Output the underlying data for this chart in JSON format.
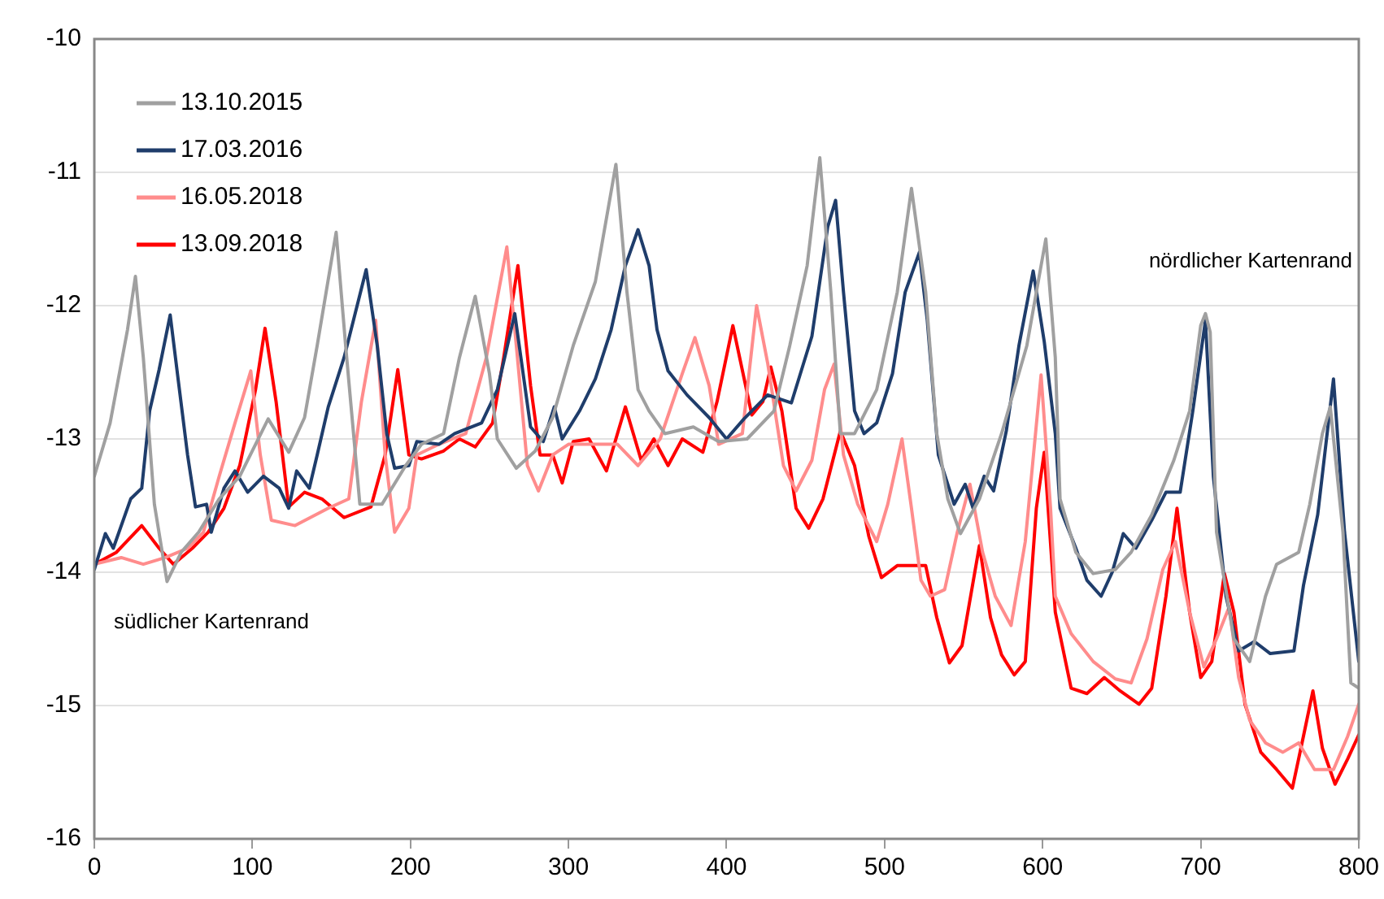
{
  "chart_data": {
    "type": "line",
    "xlim": [
      0,
      800
    ],
    "xticks": [
      0,
      100,
      200,
      300,
      400,
      500,
      600,
      700,
      800
    ],
    "ylim": [
      -16,
      -10
    ],
    "yticks": [
      -16,
      -15,
      -14,
      -13,
      -12,
      -11,
      -10
    ],
    "grid": "y",
    "legend": "top left",
    "marker": "none",
    "line_style": "solid",
    "annotations": [
      "nördlicher Kartenrand",
      "südlicher Kartenrand"
    ],
    "series": [
      {
        "name": "13.10.2015",
        "color": "#a0a0a0",
        "x": [
          0,
          10,
          21,
          26,
          31,
          38,
          46,
          55,
          66,
          79,
          92,
          110,
          123,
          133,
          141,
          153,
          159,
          168,
          182,
          197,
          207,
          221,
          231,
          241,
          250,
          255,
          267,
          279,
          290,
          303,
          317,
          330,
          337,
          344,
          351,
          361,
          379,
          395,
          413,
          430,
          440,
          451,
          459,
          466,
          472,
          481,
          495,
          508,
          517,
          526,
          533,
          540,
          548,
          560,
          574,
          590,
          602,
          608,
          611,
          621,
          632,
          646,
          656,
          669,
          683,
          693,
          700,
          703,
          706,
          710,
          721,
          731,
          741,
          748,
          762,
          769,
          777,
          782,
          790,
          795,
          800
        ],
        "values": [
          -13.28,
          -12.88,
          -12.18,
          -11.78,
          -12.39,
          -13.49,
          -14.07,
          -13.85,
          -13.7,
          -13.45,
          -13.28,
          -12.85,
          -13.1,
          -12.84,
          -12.3,
          -11.45,
          -12.3,
          -13.49,
          -13.49,
          -13.2,
          -13.04,
          -12.96,
          -12.39,
          -11.93,
          -12.51,
          -13.0,
          -13.22,
          -13.09,
          -12.84,
          -12.3,
          -11.82,
          -10.94,
          -11.9,
          -12.63,
          -12.79,
          -12.96,
          -12.91,
          -13.02,
          -13.0,
          -12.79,
          -12.3,
          -11.7,
          -10.89,
          -11.9,
          -12.96,
          -12.96,
          -12.63,
          -11.9,
          -11.12,
          -11.9,
          -12.96,
          -13.45,
          -13.71,
          -13.45,
          -12.96,
          -12.3,
          -11.5,
          -12.39,
          -13.45,
          -13.85,
          -14.01,
          -13.98,
          -13.85,
          -13.57,
          -13.16,
          -12.79,
          -12.15,
          -12.06,
          -12.2,
          -13.7,
          -14.5,
          -14.67,
          -14.18,
          -13.94,
          -13.85,
          -13.49,
          -12.96,
          -12.76,
          -13.7,
          -14.83,
          -14.87
        ]
      },
      {
        "name": "17.03.2016",
        "color": "#1f3d6b",
        "x": [
          0,
          7,
          12,
          23,
          30,
          35,
          41,
          48,
          53,
          59,
          64,
          71,
          74,
          82,
          89,
          97,
          107,
          117,
          123,
          128,
          136,
          141,
          148,
          158,
          172,
          179,
          185,
          190,
          199,
          204,
          218,
          228,
          245,
          255,
          266,
          276,
          284,
          291,
          296,
          307,
          317,
          327,
          336,
          344,
          351,
          356,
          363,
          375,
          389,
          400,
          411,
          416,
          426,
          441,
          454,
          464,
          469,
          474,
          481,
          487,
          495,
          505,
          513,
          522,
          527,
          534,
          544,
          551,
          556,
          563,
          569,
          577,
          585,
          594,
          601,
          608,
          611,
          621,
          628,
          637,
          644,
          651,
          659,
          669,
          678,
          687,
          695,
          703,
          708,
          716,
          724,
          734,
          744,
          759,
          765,
          774,
          784,
          791,
          800
        ],
        "values": [
          -13.98,
          -13.71,
          -13.82,
          -13.45,
          -13.37,
          -12.79,
          -12.48,
          -12.07,
          -12.55,
          -13.12,
          -13.51,
          -13.49,
          -13.7,
          -13.37,
          -13.24,
          -13.4,
          -13.28,
          -13.37,
          -13.52,
          -13.24,
          -13.37,
          -13.12,
          -12.76,
          -12.39,
          -11.73,
          -12.3,
          -12.96,
          -13.22,
          -13.2,
          -13.02,
          -13.04,
          -12.96,
          -12.88,
          -12.63,
          -12.06,
          -12.91,
          -13.02,
          -12.76,
          -13.0,
          -12.79,
          -12.55,
          -12.18,
          -11.7,
          -11.43,
          -11.7,
          -12.18,
          -12.49,
          -12.67,
          -12.84,
          -13.0,
          -12.85,
          -12.79,
          -12.67,
          -12.73,
          -12.23,
          -11.41,
          -11.21,
          -11.9,
          -12.79,
          -12.96,
          -12.88,
          -12.51,
          -11.9,
          -11.6,
          -12.11,
          -13.12,
          -13.49,
          -13.34,
          -13.52,
          -13.28,
          -13.39,
          -12.94,
          -12.3,
          -11.74,
          -12.27,
          -12.96,
          -13.52,
          -13.82,
          -14.06,
          -14.18,
          -14.0,
          -13.71,
          -13.82,
          -13.61,
          -13.4,
          -13.4,
          -12.79,
          -12.11,
          -13.28,
          -14.18,
          -14.59,
          -14.52,
          -14.61,
          -14.59,
          -14.1,
          -13.57,
          -12.55,
          -13.7,
          -14.67
        ]
      },
      {
        "name": "16.05.2018",
        "color": "#ff8c8c",
        "x": [
          0,
          17,
          31,
          45,
          59,
          69,
          79,
          89,
          99,
          105,
          112,
          127,
          148,
          161,
          169,
          178,
          184,
          190,
          199,
          204,
          218,
          235,
          248,
          261,
          267,
          274,
          281,
          290,
          300,
          313,
          331,
          344,
          358,
          372,
          380,
          389,
          395,
          410,
          419,
          426,
          436,
          444,
          454,
          462,
          468,
          474,
          483,
          495,
          502,
          511,
          517,
          523,
          529,
          538,
          546,
          554,
          562,
          570,
          580,
          589,
          599,
          605,
          608,
          618,
          632,
          646,
          656,
          666,
          676,
          684,
          693,
          702,
          710,
          718,
          724,
          731,
          741,
          752,
          762,
          772,
          784,
          793,
          800
        ],
        "values": [
          -13.94,
          -13.89,
          -13.94,
          -13.89,
          -13.82,
          -13.7,
          -13.28,
          -12.88,
          -12.49,
          -13.12,
          -13.61,
          -13.65,
          -13.52,
          -13.45,
          -12.72,
          -12.11,
          -13.12,
          -13.7,
          -13.52,
          -13.12,
          -13.04,
          -12.96,
          -12.39,
          -11.56,
          -12.3,
          -13.2,
          -13.39,
          -13.12,
          -13.04,
          -13.04,
          -13.04,
          -13.2,
          -13.0,
          -12.51,
          -12.24,
          -12.6,
          -13.04,
          -12.96,
          -12.0,
          -12.43,
          -13.2,
          -13.39,
          -13.16,
          -12.63,
          -12.44,
          -13.12,
          -13.49,
          -13.77,
          -13.49,
          -13.0,
          -13.52,
          -14.06,
          -14.18,
          -14.13,
          -13.7,
          -13.34,
          -13.85,
          -14.18,
          -14.4,
          -13.77,
          -12.52,
          -13.52,
          -14.18,
          -14.46,
          -14.67,
          -14.8,
          -14.83,
          -14.5,
          -13.98,
          -13.77,
          -14.3,
          -14.71,
          -14.5,
          -14.26,
          -14.79,
          -15.11,
          -15.28,
          -15.35,
          -15.28,
          -15.48,
          -15.48,
          -15.23,
          -14.99
        ]
      },
      {
        "name": "13.09.2018",
        "color": "#ff0000",
        "x": [
          0,
          14,
          30,
          41,
          50,
          62,
          72,
          82,
          92,
          102,
          108,
          115,
          123,
          133,
          144,
          158,
          175,
          184,
          192,
          199,
          207,
          221,
          231,
          241,
          252,
          259,
          268,
          276,
          282,
          290,
          296,
          303,
          313,
          324,
          336,
          346,
          354,
          363,
          372,
          385,
          394,
          404,
          416,
          423,
          428,
          435,
          444,
          452,
          461,
          472,
          481,
          490,
          498,
          508,
          518,
          526,
          533,
          541,
          549,
          560,
          567,
          574,
          582,
          589,
          596,
          601,
          608,
          618,
          628,
          639,
          649,
          661,
          669,
          678,
          685,
          693,
          700,
          707,
          715,
          721,
          728,
          738,
          748,
          758,
          765,
          771,
          777,
          785,
          793,
          800
        ],
        "values": [
          -13.94,
          -13.85,
          -13.65,
          -13.82,
          -13.94,
          -13.82,
          -13.7,
          -13.52,
          -13.2,
          -12.63,
          -12.17,
          -12.72,
          -13.51,
          -13.4,
          -13.45,
          -13.59,
          -13.51,
          -13.12,
          -12.48,
          -13.12,
          -13.15,
          -13.09,
          -13.0,
          -13.06,
          -12.88,
          -12.39,
          -11.7,
          -12.6,
          -13.12,
          -13.12,
          -13.33,
          -13.02,
          -13.0,
          -13.24,
          -12.76,
          -13.16,
          -13.0,
          -13.2,
          -13.0,
          -13.1,
          -12.72,
          -12.15,
          -12.82,
          -12.72,
          -12.46,
          -12.79,
          -13.52,
          -13.67,
          -13.45,
          -12.94,
          -13.2,
          -13.73,
          -14.04,
          -13.95,
          -13.95,
          -13.95,
          -14.34,
          -14.68,
          -14.55,
          -13.8,
          -14.34,
          -14.62,
          -14.77,
          -14.67,
          -13.52,
          -13.1,
          -14.3,
          -14.87,
          -14.91,
          -14.79,
          -14.89,
          -14.99,
          -14.87,
          -14.18,
          -13.52,
          -14.3,
          -14.79,
          -14.67,
          -14.01,
          -14.3,
          -14.99,
          -15.35,
          -15.48,
          -15.62,
          -15.23,
          -14.89,
          -15.32,
          -15.59,
          -15.4,
          -15.22
        ]
      }
    ]
  }
}
